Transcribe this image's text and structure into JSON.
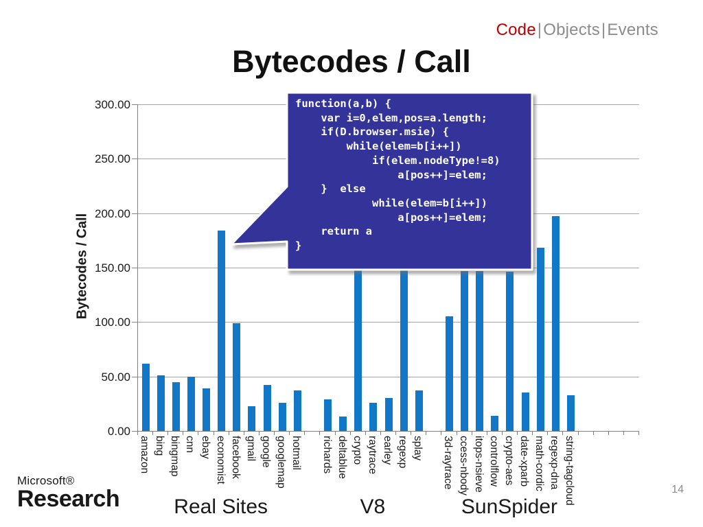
{
  "header": {
    "items": [
      {
        "label": "Code",
        "active": true
      },
      {
        "label": "Objects",
        "active": false
      },
      {
        "label": "Events",
        "active": false
      }
    ],
    "separator": "|",
    "active_color": "#C00000",
    "inactive_color": "#8C8C8C"
  },
  "slide": {
    "title": "Bytecodes / Call",
    "page_number": "14"
  },
  "logo": {
    "brand": "Microsoft®",
    "name": "Research"
  },
  "callout": {
    "bg_color": "#333399",
    "border_color": "#FFFFFF",
    "text_color": "#FFFFFF",
    "code_lines": [
      "function(a,b) {",
      "    var i=0,elem,pos=a.length;",
      "    if(D.browser.msie) {",
      "        while(elem=b[i++])",
      "            if(elem.nodeType!=8)",
      "                a[pos++]=elem;",
      "    }  else",
      "            while(elem=b[i++])",
      "                a[pos++]=elem;",
      "    return a",
      "}"
    ]
  },
  "chart_data": {
    "type": "bar",
    "title": "Bytecodes / Call",
    "xlabel": "",
    "ylabel": "Bytecodes / Call",
    "ylim": [
      0,
      300
    ],
    "ytick_step": 50,
    "ytick_labels": [
      "300.00",
      "250.00",
      "200.00",
      "150.00",
      "100.00",
      "50.00",
      "0.00"
    ],
    "grid": true,
    "legend": "none",
    "bar_color": "#1277C6",
    "gridline_color": "#A6A6A6",
    "axis_color": "#808080",
    "group_gap_slots": 1,
    "trailing_empty_slots": 4,
    "groups": [
      {
        "label": "Real Sites",
        "bars": [
          {
            "label": "amazon",
            "value": 62
          },
          {
            "label": "bing",
            "value": 51
          },
          {
            "label": "bingmap",
            "value": 45
          },
          {
            "label": "cnn",
            "value": 50
          },
          {
            "label": "ebay",
            "value": 39
          },
          {
            "label": "economist",
            "value": 184
          },
          {
            "label": "facebook",
            "value": 99
          },
          {
            "label": "gmail",
            "value": 23
          },
          {
            "label": "google",
            "value": 42
          },
          {
            "label": "googlemap",
            "value": 26
          },
          {
            "label": "hotmail",
            "value": 37
          }
        ]
      },
      {
        "label": "V8",
        "bars": [
          {
            "label": "richards",
            "value": 29
          },
          {
            "label": "deltablue",
            "value": 13
          },
          {
            "label": "crypto",
            "value": 148
          },
          {
            "label": "raytrace",
            "value": 26
          },
          {
            "label": "earley",
            "value": 30
          },
          {
            "label": "regexp",
            "value": 148
          },
          {
            "label": "splay",
            "value": 37
          }
        ]
      },
      {
        "label": "SunSpider",
        "bars": [
          {
            "label": "3d-raytrace",
            "value": 105
          },
          {
            "label": "ccess-nbody",
            "value": 147
          },
          {
            "label": "itops-nsieve",
            "value": 147
          },
          {
            "label": "controlflow",
            "value": 14
          },
          {
            "label": "crypto-aes",
            "value": 146
          },
          {
            "label": "date-xparb",
            "value": 35
          },
          {
            "label": "math-cordic",
            "value": 168
          },
          {
            "label": "regexp-dna",
            "value": 197
          },
          {
            "label": "string-tagcloud",
            "value": 33
          }
        ]
      }
    ]
  }
}
